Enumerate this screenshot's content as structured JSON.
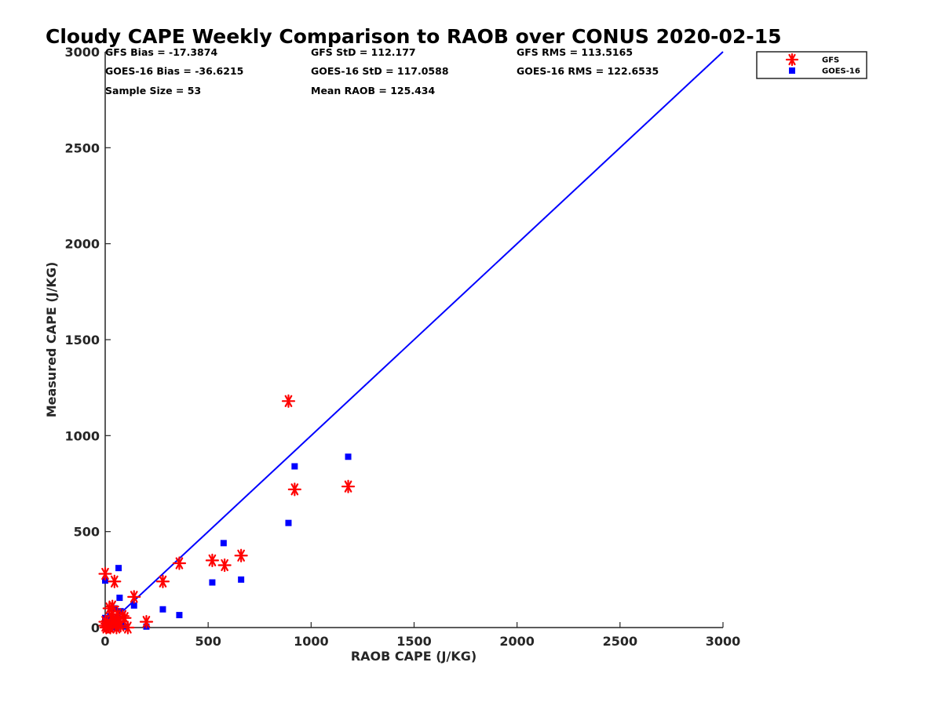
{
  "chart_data": {
    "type": "scatter",
    "title": "Cloudy CAPE Weekly Comparison to RAOB over CONUS 2020-02-15",
    "xlabel": "RAOB CAPE (J/KG)",
    "ylabel": "Measured CAPE (J/KG)",
    "xlim": [
      0,
      3000
    ],
    "ylim": [
      0,
      3000
    ],
    "xticks": [
      "0",
      "500",
      "1000",
      "1500",
      "2000",
      "2500",
      "3000"
    ],
    "yticks": [
      "0",
      "500",
      "1000",
      "1500",
      "2000",
      "2500",
      "3000"
    ],
    "grid": false,
    "legend_position": "top-right",
    "reference_line": {
      "x": [
        0,
        3000
      ],
      "y": [
        0,
        3000
      ],
      "color": "#0000ff"
    },
    "stats": [
      [
        "GFS Bias = -17.3874",
        "GFS StD = 112.177",
        "GFS RMS = 113.5165"
      ],
      [
        "GOES-16 Bias = -36.6215",
        "GOES-16 StD = 117.0588",
        "GOES-16 RMS = 122.6535"
      ],
      [
        "Sample Size = 53",
        "Mean RAOB = 125.434",
        ""
      ]
    ],
    "series": [
      {
        "name": "GFS",
        "marker": "asterisk",
        "color": "#ff0000",
        "points": [
          [
            0,
            280
          ],
          [
            0,
            30
          ],
          [
            0,
            10
          ],
          [
            5,
            0
          ],
          [
            10,
            20
          ],
          [
            15,
            5
          ],
          [
            20,
            100
          ],
          [
            25,
            0
          ],
          [
            30,
            60
          ],
          [
            35,
            110
          ],
          [
            40,
            40
          ],
          [
            45,
            240
          ],
          [
            50,
            15
          ],
          [
            55,
            0
          ],
          [
            60,
            70
          ],
          [
            65,
            30
          ],
          [
            75,
            10
          ],
          [
            85,
            60
          ],
          [
            95,
            50
          ],
          [
            110,
            0
          ],
          [
            140,
            160
          ],
          [
            200,
            30
          ],
          [
            280,
            240
          ],
          [
            360,
            335
          ],
          [
            520,
            350
          ],
          [
            580,
            325
          ],
          [
            660,
            375
          ],
          [
            890,
            1180
          ],
          [
            920,
            720
          ],
          [
            1180,
            735
          ]
        ]
      },
      {
        "name": "GOES-16",
        "marker": "square",
        "color": "#0000ff",
        "points": [
          [
            0,
            245
          ],
          [
            0,
            50
          ],
          [
            0,
            20
          ],
          [
            5,
            0
          ],
          [
            10,
            10
          ],
          [
            15,
            40
          ],
          [
            20,
            0
          ],
          [
            25,
            60
          ],
          [
            30,
            25
          ],
          [
            35,
            5
          ],
          [
            40,
            15
          ],
          [
            45,
            100
          ],
          [
            50,
            40
          ],
          [
            55,
            0
          ],
          [
            60,
            55
          ],
          [
            65,
            310
          ],
          [
            70,
            155
          ],
          [
            75,
            85
          ],
          [
            85,
            20
          ],
          [
            100,
            5
          ],
          [
            140,
            115
          ],
          [
            200,
            5
          ],
          [
            280,
            95
          ],
          [
            360,
            65
          ],
          [
            520,
            235
          ],
          [
            575,
            440
          ],
          [
            660,
            250
          ],
          [
            890,
            545
          ],
          [
            920,
            840
          ],
          [
            1180,
            890
          ]
        ]
      }
    ]
  }
}
